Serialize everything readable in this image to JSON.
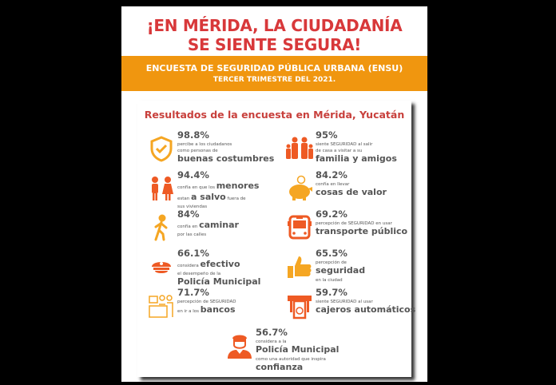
{
  "header": {
    "title_line1": "¡EN MÉRIDA, LA CIUDADANÍA",
    "title_line2": "SE SIENTE SEGURA!"
  },
  "band": {
    "line1": "ENCUESTA DE SEGURIDAD PÚBLICA URBANA (ENSU)",
    "line2": "TERCER TRIMESTRE DEL 2021."
  },
  "card": {
    "title": "Resultados de la encuesta en Mérida, Yucatán"
  },
  "colors": {
    "red": "#d8383a",
    "orange": "#f0960f",
    "icon_red": "#ee5a24",
    "icon_orange": "#f5a623"
  },
  "items": [
    {
      "icon": "shield-check-icon",
      "pct": "98.8%",
      "lines": [
        [
          {
            "t": "percibe a los ciudadanos"
          }
        ],
        [
          {
            "t": "como personas de"
          }
        ],
        [
          {
            "t": "buenas costumbres",
            "big": true
          }
        ]
      ]
    },
    {
      "icon": "family-icon",
      "pct": "95%",
      "lines": [
        [
          {
            "t": "siente SEGURIDAD al salir"
          }
        ],
        [
          {
            "t": "de casa a visitar a su"
          }
        ],
        [
          {
            "t": "familia y amigos",
            "big": true
          }
        ]
      ]
    },
    {
      "icon": "children-icon",
      "pct": "94.4%",
      "lines": [
        [
          {
            "t": "confía en que los "
          },
          {
            "t": "menores",
            "big": true
          }
        ],
        [
          {
            "t": "estan "
          },
          {
            "t": "a salvo",
            "big": true
          },
          {
            "t": " fuera de"
          }
        ],
        [
          {
            "t": "sus viviendas"
          }
        ]
      ]
    },
    {
      "icon": "piggy-bank-icon",
      "pct": "84.2%",
      "lines": [
        [
          {
            "t": "confía en llevar"
          }
        ],
        [
          {
            "t": "cosas de valor",
            "big": true
          }
        ]
      ]
    },
    {
      "icon": "walking-person-icon",
      "pct": "84%",
      "lines": [
        [
          {
            "t": "confía en "
          },
          {
            "t": "caminar",
            "big": true
          }
        ],
        [
          {
            "t": "por las calles"
          }
        ]
      ]
    },
    {
      "icon": "bus-icon",
      "pct": "69.2%",
      "lines": [
        [
          {
            "t": "percepción de SEGURIDAD en usar"
          }
        ],
        [
          {
            "t": "transporte público",
            "big": true
          }
        ]
      ]
    },
    {
      "icon": "police-cap-icon",
      "pct": "66.1%",
      "lines": [
        [
          {
            "t": "considera "
          },
          {
            "t": "efectivo",
            "big": true
          }
        ],
        [
          {
            "t": "el desempeño de la"
          }
        ],
        [
          {
            "t": "Policía Municipal",
            "big": true
          }
        ]
      ]
    },
    {
      "icon": "thumbs-up-icon",
      "pct": "65.5%",
      "lines": [
        [
          {
            "t": "percepción de"
          }
        ],
        [
          {
            "t": "seguridad",
            "big": true
          }
        ],
        [
          {
            "t": "en la ciudad"
          }
        ]
      ]
    },
    {
      "icon": "bank-counter-icon",
      "pct": "71.7%",
      "lines": [
        [
          {
            "t": "percepción de SEGURIDAD"
          }
        ],
        [
          {
            "t": "en ir a los "
          },
          {
            "t": "bancos",
            "big": true
          }
        ]
      ]
    },
    {
      "icon": "atm-icon",
      "pct": "59.7%",
      "lines": [
        [
          {
            "t": "siente SEGURIDAD al usar"
          }
        ],
        [
          {
            "t": "cajeros automáticos",
            "big": true
          }
        ]
      ]
    },
    {
      "icon": "police-officer-icon",
      "pct": "56.7%",
      "lines": [
        [
          {
            "t": "considera a la"
          }
        ],
        [
          {
            "t": "Policía Municipal",
            "big": true
          }
        ],
        [
          {
            "t": "como una autoridad que inspira"
          }
        ],
        [
          {
            "t": "confianza",
            "big": true
          }
        ]
      ]
    }
  ]
}
